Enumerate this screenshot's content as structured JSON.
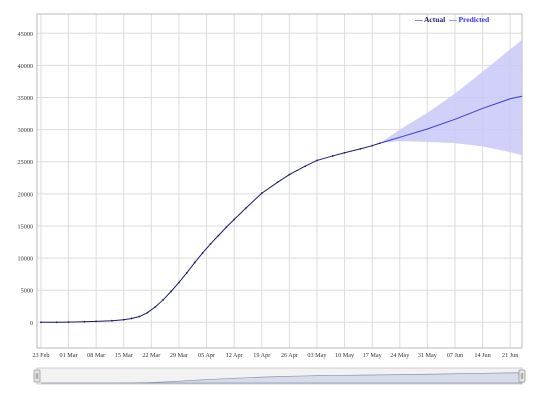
{
  "chart_data": {
    "type": "line",
    "title": "",
    "xlabel": "",
    "ylabel": "",
    "x_tick_labels": [
      "23 Feb",
      "01 Mar",
      "08 Mar",
      "15 Mar",
      "22 Mar",
      "29 Mar",
      "05 Apr",
      "12 Apr",
      "19 Apr",
      "26 Apr",
      "03 May",
      "10 May",
      "17 May",
      "24 May",
      "31 May",
      "07 Jun",
      "14 Jun",
      "21 Jun"
    ],
    "y_tick_labels": [
      "0",
      "5000",
      "10000",
      "15000",
      "20000",
      "25000",
      "30000",
      "35000",
      "40000",
      "45000"
    ],
    "ylim": [
      -4000,
      48000
    ],
    "xlim": [
      "2020-02-22",
      "2020-06-24"
    ],
    "grid": true,
    "legend_position": "top-right",
    "colors": {
      "actual": "#1a1a6a",
      "predicted": "#3b3bd6",
      "band": "#c8c8f8",
      "grid": "#dddddd",
      "navigator_fill": "#d6dcea"
    },
    "series": [
      {
        "name": "Actual",
        "points": [
          [
            "2020-02-23",
            0
          ],
          [
            "2020-02-27",
            0
          ],
          [
            "2020-03-01",
            20
          ],
          [
            "2020-03-05",
            80
          ],
          [
            "2020-03-08",
            150
          ],
          [
            "2020-03-12",
            250
          ],
          [
            "2020-03-15",
            400
          ],
          [
            "2020-03-17",
            600
          ],
          [
            "2020-03-19",
            900
          ],
          [
            "2020-03-21",
            1500
          ],
          [
            "2020-03-23",
            2400
          ],
          [
            "2020-03-25",
            3500
          ],
          [
            "2020-03-27",
            4800
          ],
          [
            "2020-03-29",
            6200
          ],
          [
            "2020-03-31",
            7700
          ],
          [
            "2020-04-02",
            9300
          ],
          [
            "2020-04-04",
            10800
          ],
          [
            "2020-04-06",
            12200
          ],
          [
            "2020-04-08",
            13500
          ],
          [
            "2020-04-10",
            14800
          ],
          [
            "2020-04-12",
            16000
          ],
          [
            "2020-04-15",
            17800
          ],
          [
            "2020-04-19",
            20100
          ],
          [
            "2020-04-23",
            21800
          ],
          [
            "2020-04-26",
            23000
          ],
          [
            "2020-04-30",
            24300
          ],
          [
            "2020-05-03",
            25200
          ],
          [
            "2020-05-07",
            25900
          ],
          [
            "2020-05-10",
            26400
          ],
          [
            "2020-05-14",
            27000
          ],
          [
            "2020-05-17",
            27500
          ],
          [
            "2020-05-19",
            27900
          ]
        ]
      },
      {
        "name": "Predicted",
        "points": [
          [
            "2020-05-19",
            27900
          ],
          [
            "2020-05-24",
            28800
          ],
          [
            "2020-05-31",
            30100
          ],
          [
            "2020-06-07",
            31600
          ],
          [
            "2020-06-14",
            33300
          ],
          [
            "2020-06-21",
            34800
          ],
          [
            "2020-06-24",
            35200
          ]
        ],
        "upper": [
          [
            "2020-05-19",
            27900
          ],
          [
            "2020-05-24",
            30000
          ],
          [
            "2020-05-31",
            32600
          ],
          [
            "2020-06-07",
            35600
          ],
          [
            "2020-06-14",
            39000
          ],
          [
            "2020-06-21",
            42500
          ],
          [
            "2020-06-24",
            44000
          ]
        ],
        "lower": [
          [
            "2020-05-19",
            27900
          ],
          [
            "2020-05-24",
            28200
          ],
          [
            "2020-05-31",
            28100
          ],
          [
            "2020-06-07",
            27900
          ],
          [
            "2020-06-14",
            27400
          ],
          [
            "2020-06-21",
            26500
          ],
          [
            "2020-06-24",
            26000
          ]
        ]
      }
    ]
  },
  "legend": {
    "actual_label": "— Actual",
    "predicted_label": "— Predicted"
  },
  "navigator": {
    "left_handle_icon": "drag-handle-icon",
    "right_handle_icon": "drag-handle-icon"
  }
}
